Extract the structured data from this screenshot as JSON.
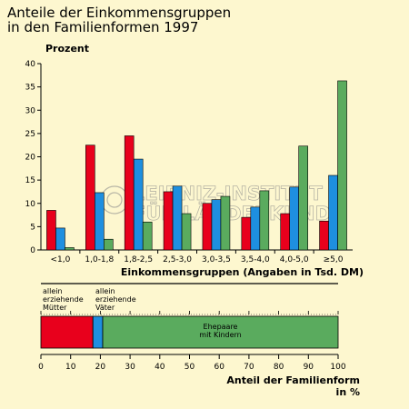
{
  "title": "Anteile der Einkommensgruppen\nin den Familienformen 1997",
  "watermark": [
    "LEIBNIZ-INSTITUT",
    "FÜR LÄNDERKUNDE"
  ],
  "colors": {
    "background": "#fdf7cf",
    "red": "#e8001c",
    "blue": "#1e8fe0",
    "green": "#5aab5e"
  },
  "chart_data": [
    {
      "type": "bar",
      "ylabel": "Prozent",
      "xlabel": "Einkommensgruppen (Angaben in Tsd. DM)",
      "ylim": [
        0,
        40
      ],
      "yticks": [
        0,
        5,
        10,
        15,
        20,
        25,
        30,
        35,
        40
      ],
      "categories": [
        "<1,0",
        "1,0-1,8",
        "1,8-2,5",
        "2,5-3,0",
        "3,0-3,5",
        "3,5-4,0",
        "4,0-5,0",
        "≥5,0"
      ],
      "series": [
        {
          "color": "#e8001c",
          "values": [
            8.5,
            22.5,
            24.5,
            12.5,
            10.0,
            7.0,
            7.8,
            6.2
          ]
        },
        {
          "color": "#1e8fe0",
          "values": [
            4.7,
            12.3,
            19.5,
            13.7,
            10.8,
            9.2,
            13.5,
            16.0
          ]
        },
        {
          "color": "#5aab5e",
          "values": [
            0.5,
            2.3,
            6.0,
            7.8,
            11.5,
            12.7,
            22.3,
            36.3
          ]
        }
      ],
      "grid": false,
      "legend": "none"
    },
    {
      "type": "bar",
      "orientation": "horizontal-stacked",
      "xlabel": "Anteil der Familienform\nin %",
      "xlim": [
        0,
        100
      ],
      "xticks": [
        0,
        10,
        20,
        30,
        40,
        50,
        60,
        70,
        80,
        90,
        100
      ],
      "segments": [
        {
          "label": "allein\nerziehende\nMütter",
          "start": 0,
          "end": 17.5,
          "color": "#e8001c"
        },
        {
          "label": "allein\nerziehende\nVäter",
          "start": 17.5,
          "end": 20.8,
          "color": "#1e8fe0"
        },
        {
          "label": "Ehepaare\nmit Kindern",
          "start": 20.8,
          "end": 100,
          "color": "#5aab5e"
        }
      ]
    }
  ]
}
